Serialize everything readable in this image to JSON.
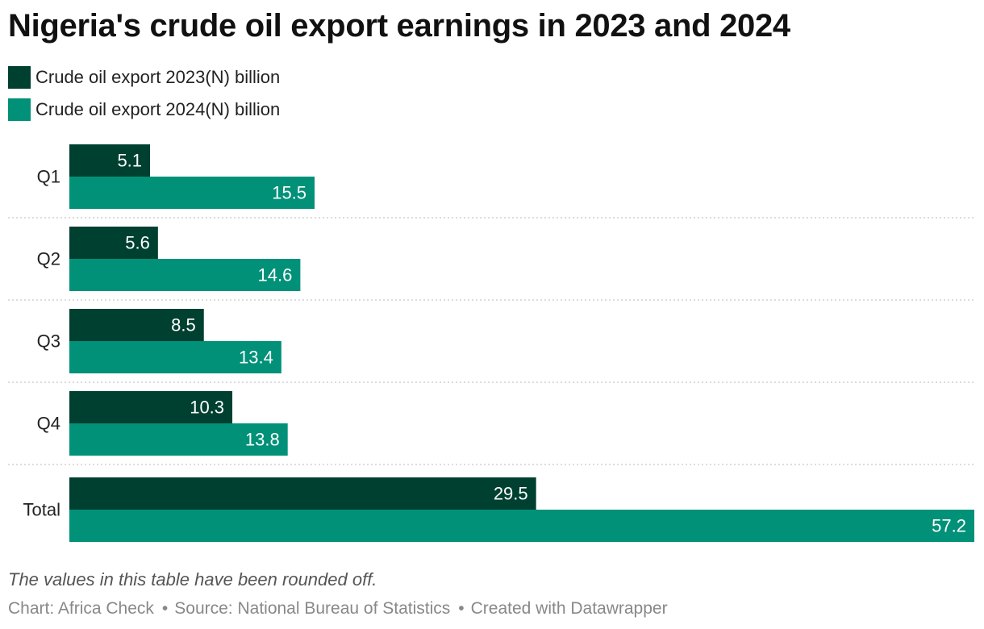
{
  "title": "Nigeria's crude oil export earnings in 2023 and 2024",
  "colors": {
    "series_2023": "#004030",
    "series_2024": "#009178",
    "label": "#ffffff",
    "gridline": "#b8b8b8"
  },
  "chart_data": {
    "type": "bar",
    "orientation": "horizontal",
    "title": "Nigeria's crude oil export earnings in 2023 and 2024",
    "categories": [
      "Q1",
      "Q2",
      "Q3",
      "Q4",
      "Total"
    ],
    "series": [
      {
        "name": "Crude oil export 2023(N) billion",
        "values": [
          5.1,
          5.6,
          8.5,
          10.3,
          29.5
        ]
      },
      {
        "name": "Crude oil export 2024(N) billion",
        "values": [
          15.5,
          14.6,
          13.4,
          13.8,
          57.2
        ]
      }
    ],
    "value_labels": [
      [
        "5.1",
        "5.6",
        "8.5",
        "10.3",
        "29.5"
      ],
      [
        "15.5",
        "14.6",
        "13.4",
        "13.8",
        "57.2"
      ]
    ],
    "xlim": [
      0,
      57.2
    ],
    "legend": "top-left",
    "grid": false
  },
  "note": "The values in this table have been rounded off.",
  "footer": {
    "chart_credit": "Chart: Africa Check",
    "source": "Source: National Bureau of Statistics",
    "created_with": "Created with Datawrapper",
    "separator": "•"
  }
}
